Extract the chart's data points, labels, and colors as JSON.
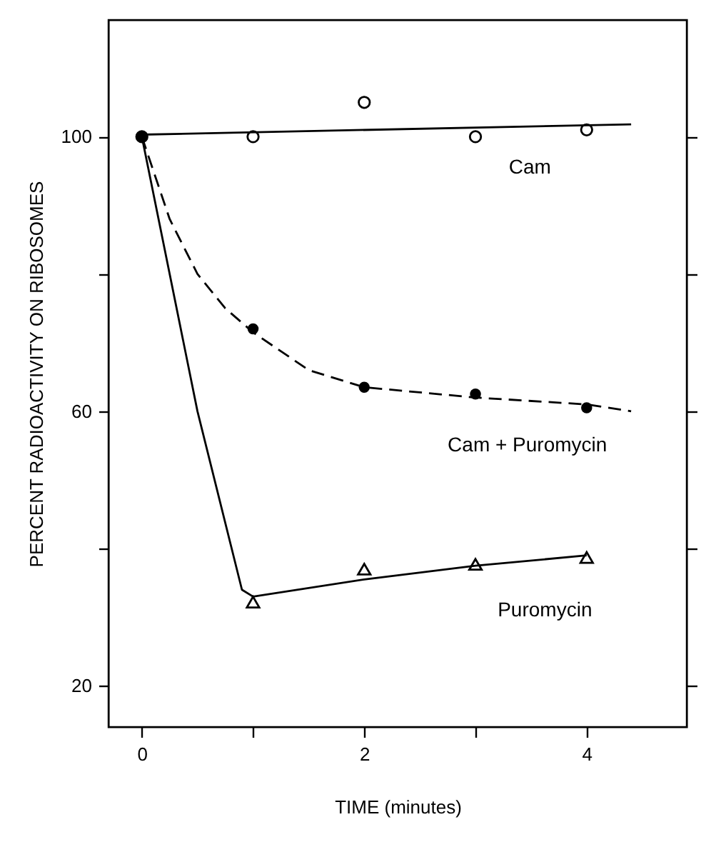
{
  "chart_data": {
    "type": "scatter",
    "xlabel": "TIME (minutes)",
    "ylabel": "PERCENT RADIOACTIVITY ON RIBOSOMES",
    "xlim": [
      -0.3,
      4.9
    ],
    "ylim": [
      14,
      117
    ],
    "xticks": [
      0,
      {
        "value": 1,
        "label": null
      },
      2,
      {
        "value": 3,
        "label": null
      },
      4
    ],
    "yticks": [
      20,
      {
        "value": 40,
        "label": null
      },
      60,
      {
        "value": 80,
        "label": null
      },
      100
    ],
    "grid": false,
    "legend": false,
    "series": [
      {
        "type": "line",
        "color": "#000000",
        "line_style": "solid",
        "x": [
          0,
          4.4
        ],
        "values": [
          100.3,
          101.8
        ]
      },
      {
        "type": "line",
        "color": "#000000",
        "line_style": "dashed",
        "x": [
          0,
          0.25,
          0.5,
          0.75,
          1,
          1.5,
          2,
          3,
          4,
          4.4
        ],
        "values": [
          100,
          88,
          80,
          75,
          71.5,
          66,
          63.5,
          62,
          61,
          60
        ]
      },
      {
        "type": "line",
        "color": "#000000",
        "line_style": "solid",
        "x": [
          0,
          0.5,
          0.9,
          1,
          2,
          3,
          4
        ],
        "values": [
          100,
          60,
          34,
          33,
          35.5,
          37.5,
          39
        ]
      },
      {
        "name": "Cam",
        "color": "#000000",
        "marker": "circle",
        "x": [
          0,
          1,
          2,
          3,
          4
        ],
        "values": [
          100,
          100,
          105,
          100,
          101
        ]
      },
      {
        "name": "Cam + Puromycin",
        "color": "#000000",
        "marker": "circle",
        "x": [
          0,
          1,
          2,
          3,
          4
        ],
        "values": [
          100,
          72,
          63.5,
          62.5,
          60.5
        ]
      },
      {
        "name": "Puromycin",
        "color": "#000000",
        "marker": "triangle",
        "x": [
          1,
          2,
          3,
          4
        ],
        "values": [
          32.2,
          37,
          37.7,
          38.7
        ]
      }
    ]
  }
}
